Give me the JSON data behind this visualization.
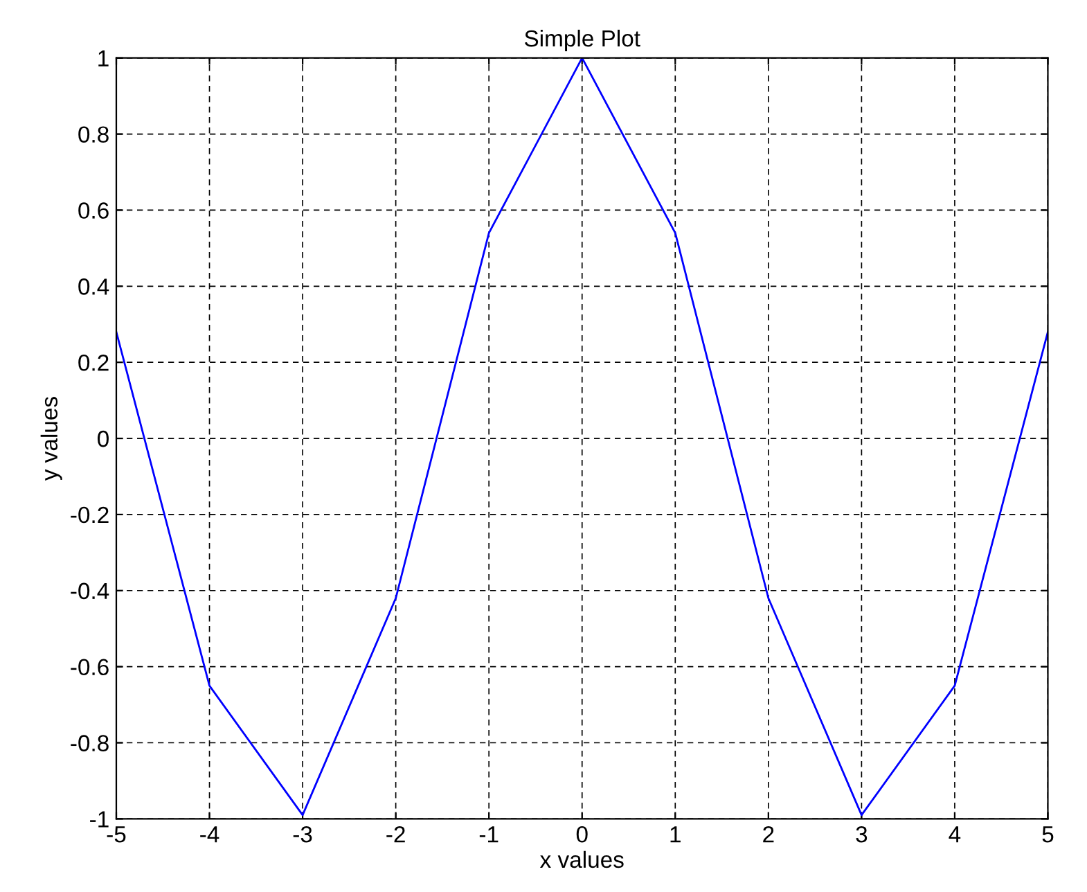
{
  "chart_data": {
    "type": "line",
    "title": "Simple Plot",
    "xlabel": "x values",
    "ylabel": "y values",
    "x": [
      -5,
      -4,
      -3,
      -2,
      -1,
      0,
      1,
      2,
      3,
      4,
      5
    ],
    "series": [
      {
        "color": "#0000ff",
        "values": [
          0.28,
          -0.65,
          -0.99,
          -0.42,
          0.54,
          1,
          0.54,
          -0.42,
          -0.99,
          -0.65,
          0.28
        ]
      }
    ],
    "xlim": [
      -5,
      5
    ],
    "ylim": [
      -1,
      1
    ],
    "xticks": [
      -5,
      -4,
      -3,
      -2,
      -1,
      0,
      1,
      2,
      3,
      4,
      5
    ],
    "yticks": [
      -1,
      -0.8,
      -0.6,
      -0.4,
      -0.2,
      0,
      0.2,
      0.4,
      0.6,
      0.8,
      1
    ],
    "grid": true,
    "marker": "none",
    "line_style": "solid",
    "legend": false
  }
}
